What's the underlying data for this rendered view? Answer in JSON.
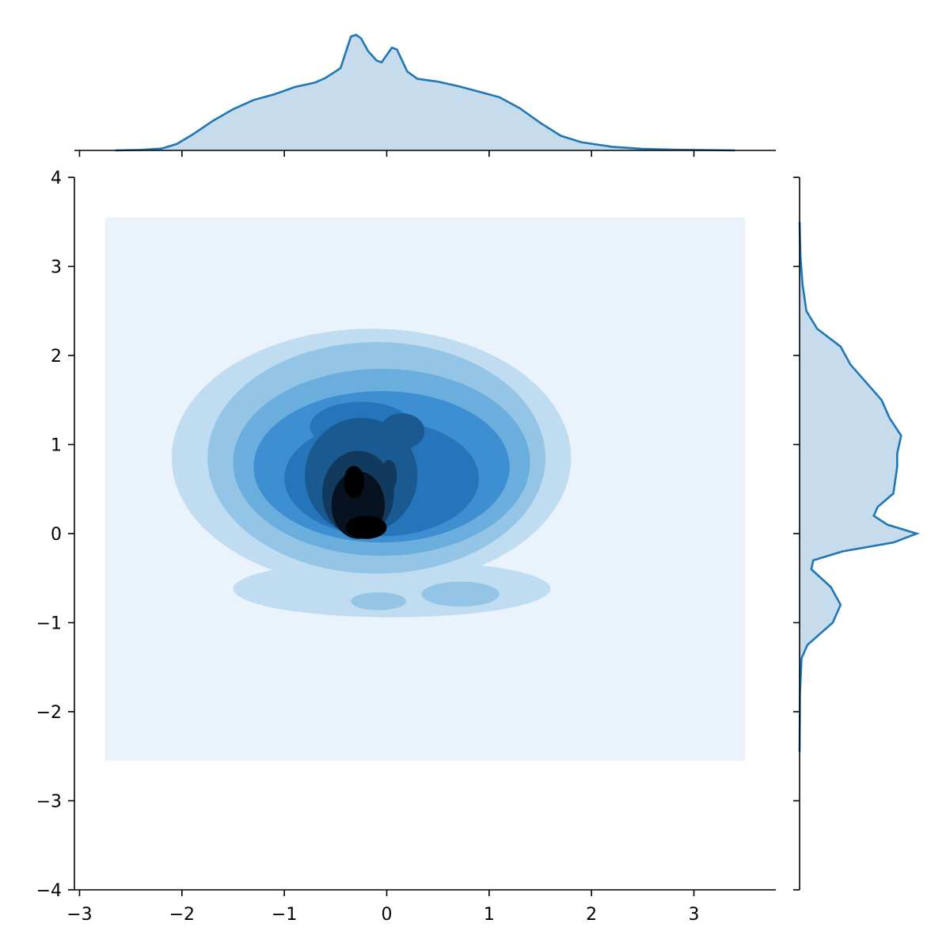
{
  "chart_data": {
    "type": "joint-kde",
    "title": "",
    "xlabel": "",
    "ylabel": "",
    "xlim": [
      -3.05,
      3.8
    ],
    "ylim": [
      -4,
      4
    ],
    "x_ticks": [
      -3,
      -2,
      -1,
      0,
      1,
      2,
      3
    ],
    "x_tick_labels": [
      "−3",
      "−2",
      "−1",
      "0",
      "1",
      "2",
      "3"
    ],
    "y_ticks": [
      -4,
      -3,
      -2,
      -1,
      0,
      1,
      2,
      3,
      4
    ],
    "y_tick_labels": [
      "−4",
      "−3",
      "−2",
      "−1",
      "0",
      "1",
      "2",
      "3",
      "4"
    ],
    "grid": false,
    "legend": false,
    "colors": {
      "line": "#1f77b4",
      "fill": "#c6dbec",
      "levels": [
        "#eaf3fb",
        "#bfdcf0",
        "#94c4e6",
        "#6aaedd",
        "#3d8fd2",
        "#2674b9",
        "#1a5a90",
        "#113a5e",
        "#06121f"
      ]
    },
    "joint_support": {
      "x": [
        -2.75,
        3.5
      ],
      "y": [
        -2.55,
        3.55
      ]
    },
    "kde_levels": [
      {
        "level": 1,
        "shapes": [
          {
            "type": "ellipse",
            "cx": -0.15,
            "cy": 0.85,
            "rx": 1.95,
            "ry": 1.45
          },
          {
            "type": "ellipse",
            "cx": 0.05,
            "cy": -0.62,
            "rx": 1.55,
            "ry": 0.32
          }
        ]
      },
      {
        "level": 2,
        "shapes": [
          {
            "type": "ellipse",
            "cx": -0.1,
            "cy": 0.85,
            "rx": 1.65,
            "ry": 1.3
          },
          {
            "type": "ellipse",
            "cx": 0.72,
            "cy": -0.68,
            "rx": 0.38,
            "ry": 0.14
          },
          {
            "type": "ellipse",
            "cx": -0.08,
            "cy": -0.76,
            "rx": 0.27,
            "ry": 0.1
          }
        ]
      },
      {
        "level": 3,
        "shapes": [
          {
            "type": "ellipse",
            "cx": -0.05,
            "cy": 0.8,
            "rx": 1.45,
            "ry": 1.05
          }
        ]
      },
      {
        "level": 4,
        "shapes": [
          {
            "type": "ellipse",
            "cx": -0.05,
            "cy": 0.75,
            "rx": 1.25,
            "ry": 0.85
          }
        ]
      },
      {
        "level": 5,
        "shapes": [
          {
            "type": "ellipse",
            "cx": -0.05,
            "cy": 0.62,
            "rx": 0.95,
            "ry": 0.65
          },
          {
            "type": "ellipse",
            "cx": -0.25,
            "cy": 1.2,
            "rx": 0.5,
            "ry": 0.28
          }
        ]
      },
      {
        "level": 6,
        "shapes": [
          {
            "type": "ellipse",
            "cx": -0.25,
            "cy": 0.65,
            "rx": 0.55,
            "ry": 0.65
          },
          {
            "type": "ellipse",
            "cx": 0.15,
            "cy": 1.15,
            "rx": 0.22,
            "ry": 0.2
          }
        ]
      },
      {
        "level": 7,
        "shapes": [
          {
            "type": "ellipse",
            "cx": -0.28,
            "cy": 0.45,
            "rx": 0.35,
            "ry": 0.48
          },
          {
            "type": "ellipse",
            "cx": 0.02,
            "cy": 0.65,
            "rx": 0.08,
            "ry": 0.18
          }
        ]
      },
      {
        "level": 8,
        "shapes": [
          {
            "type": "ellipse",
            "cx": -0.28,
            "cy": 0.32,
            "rx": 0.26,
            "ry": 0.38
          }
        ]
      },
      {
        "level": 9,
        "shapes": [
          {
            "type": "ellipse",
            "cx": -0.32,
            "cy": 0.58,
            "rx": 0.1,
            "ry": 0.18
          },
          {
            "type": "ellipse",
            "cx": -0.2,
            "cy": 0.07,
            "rx": 0.2,
            "ry": 0.13
          }
        ]
      }
    ],
    "marginal_x": {
      "x": [
        -2.65,
        -2.4,
        -2.2,
        -2.05,
        -1.9,
        -1.7,
        -1.5,
        -1.3,
        -1.1,
        -0.9,
        -0.7,
        -0.6,
        -0.5,
        -0.45,
        -0.35,
        -0.3,
        -0.25,
        -0.18,
        -0.1,
        -0.05,
        0.05,
        0.1,
        0.2,
        0.3,
        0.5,
        0.7,
        0.9,
        1.1,
        1.3,
        1.5,
        1.7,
        1.9,
        2.2,
        2.5,
        2.8,
        3.1,
        3.4
      ],
      "density": [
        0.0,
        0.003,
        0.01,
        0.035,
        0.085,
        0.16,
        0.225,
        0.275,
        0.305,
        0.345,
        0.37,
        0.395,
        0.43,
        0.45,
        0.62,
        0.63,
        0.61,
        0.54,
        0.49,
        0.48,
        0.56,
        0.55,
        0.43,
        0.39,
        0.375,
        0.35,
        0.32,
        0.29,
        0.23,
        0.15,
        0.08,
        0.045,
        0.02,
        0.008,
        0.004,
        0.002,
        0.0
      ]
    },
    "marginal_y": {
      "y": [
        -2.45,
        -1.8,
        -1.4,
        -1.25,
        -1.0,
        -0.8,
        -0.6,
        -0.4,
        -0.3,
        -0.2,
        -0.1,
        0.0,
        0.1,
        0.2,
        0.3,
        0.45,
        0.6,
        0.75,
        0.9,
        1.1,
        1.3,
        1.5,
        1.7,
        1.9,
        2.1,
        2.3,
        2.5,
        2.8,
        3.1,
        3.5
      ],
      "density": [
        0.0,
        0.002,
        0.01,
        0.04,
        0.17,
        0.21,
        0.16,
        0.06,
        0.07,
        0.22,
        0.48,
        0.6,
        0.45,
        0.38,
        0.4,
        0.48,
        0.49,
        0.5,
        0.5,
        0.52,
        0.46,
        0.42,
        0.34,
        0.26,
        0.21,
        0.09,
        0.035,
        0.015,
        0.005,
        0.0
      ]
    }
  }
}
